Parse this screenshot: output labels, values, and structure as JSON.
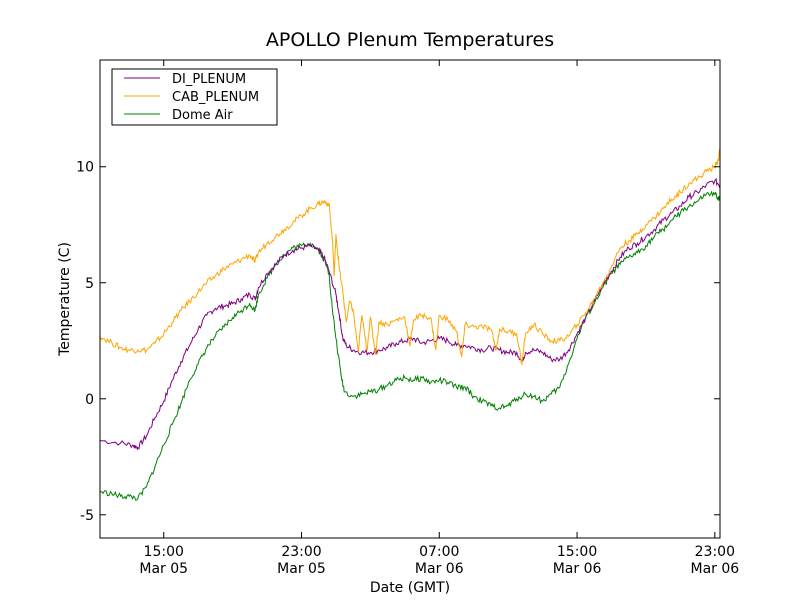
{
  "chart_data": {
    "type": "line",
    "title": "APOLLO Plenum Temperatures",
    "xlabel": "Date (GMT)",
    "ylabel": "Temperature (C)",
    "x_unit": "hours since Mar 05 00:00 GMT",
    "xlim": [
      11.3,
      47.3
    ],
    "ylim": [
      -6,
      14.6
    ],
    "grid": false,
    "legend_position": "top-left",
    "x_ticks": [
      {
        "value": 15,
        "time": "15:00",
        "date": "Mar 05"
      },
      {
        "value": 23,
        "time": "23:00",
        "date": "Mar 05"
      },
      {
        "value": 31,
        "time": "07:00",
        "date": "Mar 06"
      },
      {
        "value": 39,
        "time": "15:00",
        "date": "Mar 06"
      },
      {
        "value": 47,
        "time": "23:00",
        "date": "Mar 06"
      }
    ],
    "y_ticks": [
      {
        "value": -5,
        "label": "-5"
      },
      {
        "value": 0,
        "label": "0"
      },
      {
        "value": 5,
        "label": "5"
      },
      {
        "value": 10,
        "label": "10"
      }
    ],
    "series": [
      {
        "name": "DI_PLENUM",
        "color": "#800080",
        "points": [
          [
            11.3,
            -1.8
          ],
          [
            12.5,
            -1.9
          ],
          [
            13.2,
            -2.0
          ],
          [
            13.5,
            -2.1
          ],
          [
            14.0,
            -1.6
          ],
          [
            14.5,
            -0.8
          ],
          [
            15.0,
            -0.1
          ],
          [
            15.5,
            0.8
          ],
          [
            16.0,
            1.6
          ],
          [
            16.5,
            2.3
          ],
          [
            17.0,
            3.0
          ],
          [
            17.5,
            3.6
          ],
          [
            18.0,
            3.9
          ],
          [
            18.5,
            4.0
          ],
          [
            19.0,
            4.1
          ],
          [
            19.5,
            4.3
          ],
          [
            20.0,
            4.5
          ],
          [
            20.3,
            4.3
          ],
          [
            20.5,
            4.8
          ],
          [
            21.0,
            5.4
          ],
          [
            21.5,
            5.8
          ],
          [
            22.0,
            6.2
          ],
          [
            22.5,
            6.4
          ],
          [
            23.0,
            6.5
          ],
          [
            23.5,
            6.6
          ],
          [
            24.0,
            6.4
          ],
          [
            24.3,
            6.1
          ],
          [
            24.6,
            5.5
          ],
          [
            25.0,
            4.5
          ],
          [
            25.2,
            3.6
          ],
          [
            25.4,
            2.6
          ],
          [
            25.6,
            2.3
          ],
          [
            26.0,
            2.1
          ],
          [
            26.5,
            2.0
          ],
          [
            27.0,
            2.0
          ],
          [
            27.5,
            2.1
          ],
          [
            28.0,
            2.2
          ],
          [
            28.5,
            2.4
          ],
          [
            29.0,
            2.5
          ],
          [
            29.5,
            2.6
          ],
          [
            30.0,
            2.4
          ],
          [
            30.5,
            2.5
          ],
          [
            31.0,
            2.6
          ],
          [
            31.5,
            2.5
          ],
          [
            32.0,
            2.3
          ],
          [
            32.5,
            2.3
          ],
          [
            33.0,
            2.2
          ],
          [
            33.5,
            2.1
          ],
          [
            34.0,
            2.2
          ],
          [
            34.5,
            2.1
          ],
          [
            35.0,
            2.0
          ],
          [
            35.5,
            2.0
          ],
          [
            35.8,
            1.6
          ],
          [
            36.0,
            2.0
          ],
          [
            36.5,
            2.1
          ],
          [
            37.0,
            2.0
          ],
          [
            37.5,
            1.7
          ],
          [
            38.0,
            1.7
          ],
          [
            38.5,
            2.1
          ],
          [
            39.0,
            2.8
          ],
          [
            39.5,
            3.5
          ],
          [
            40.0,
            4.2
          ],
          [
            40.5,
            4.9
          ],
          [
            41.0,
            5.5
          ],
          [
            41.5,
            6.1
          ],
          [
            42.0,
            6.5
          ],
          [
            42.5,
            6.7
          ],
          [
            43.0,
            7.0
          ],
          [
            43.5,
            7.3
          ],
          [
            44.0,
            7.7
          ],
          [
            44.5,
            8.0
          ],
          [
            45.0,
            8.3
          ],
          [
            45.5,
            8.7
          ],
          [
            46.0,
            8.9
          ],
          [
            46.5,
            9.2
          ],
          [
            47.0,
            9.4
          ],
          [
            47.3,
            9.2
          ]
        ]
      },
      {
        "name": "CAB_PLENUM",
        "color": "#FFA500",
        "points": [
          [
            11.3,
            2.7
          ],
          [
            12.0,
            2.4
          ],
          [
            12.5,
            2.2
          ],
          [
            13.0,
            2.1
          ],
          [
            13.5,
            2.1
          ],
          [
            14.0,
            2.1
          ],
          [
            14.5,
            2.4
          ],
          [
            15.0,
            2.8
          ],
          [
            15.5,
            3.3
          ],
          [
            16.0,
            3.8
          ],
          [
            16.5,
            4.2
          ],
          [
            17.0,
            4.6
          ],
          [
            17.5,
            5.0
          ],
          [
            18.0,
            5.3
          ],
          [
            18.5,
            5.6
          ],
          [
            19.0,
            5.8
          ],
          [
            19.5,
            6.0
          ],
          [
            20.0,
            6.2
          ],
          [
            20.3,
            5.9
          ],
          [
            20.5,
            6.3
          ],
          [
            21.0,
            6.7
          ],
          [
            21.5,
            7.0
          ],
          [
            22.0,
            7.3
          ],
          [
            22.5,
            7.6
          ],
          [
            23.0,
            7.9
          ],
          [
            23.5,
            8.2
          ],
          [
            24.0,
            8.4
          ],
          [
            24.3,
            8.5
          ],
          [
            24.6,
            8.4
          ],
          [
            24.8,
            6.8
          ],
          [
            24.9,
            5.3
          ],
          [
            25.0,
            7.1
          ],
          [
            25.2,
            5.6
          ],
          [
            25.4,
            4.6
          ],
          [
            25.6,
            3.3
          ],
          [
            25.8,
            4.2
          ],
          [
            26.0,
            3.8
          ],
          [
            26.3,
            2.0
          ],
          [
            26.5,
            3.6
          ],
          [
            26.8,
            2.1
          ],
          [
            27.0,
            3.5
          ],
          [
            27.3,
            1.9
          ],
          [
            27.5,
            3.3
          ],
          [
            28.0,
            3.2
          ],
          [
            28.5,
            3.4
          ],
          [
            29.0,
            3.5
          ],
          [
            29.3,
            2.3
          ],
          [
            29.5,
            3.4
          ],
          [
            30.0,
            3.6
          ],
          [
            30.5,
            3.5
          ],
          [
            30.8,
            2.1
          ],
          [
            31.0,
            3.6
          ],
          [
            31.5,
            3.4
          ],
          [
            32.0,
            2.9
          ],
          [
            32.3,
            1.8
          ],
          [
            32.5,
            3.2
          ],
          [
            33.0,
            3.1
          ],
          [
            33.5,
            3.1
          ],
          [
            34.0,
            3.0
          ],
          [
            34.3,
            2.1
          ],
          [
            34.5,
            3.0
          ],
          [
            35.0,
            2.9
          ],
          [
            35.5,
            2.8
          ],
          [
            35.8,
            1.5
          ],
          [
            36.0,
            2.8
          ],
          [
            36.5,
            3.2
          ],
          [
            37.0,
            2.8
          ],
          [
            37.5,
            2.5
          ],
          [
            38.0,
            2.5
          ],
          [
            38.5,
            2.7
          ],
          [
            39.0,
            3.2
          ],
          [
            39.5,
            3.7
          ],
          [
            40.0,
            4.3
          ],
          [
            40.5,
            5.0
          ],
          [
            41.0,
            5.7
          ],
          [
            41.5,
            6.5
          ],
          [
            42.0,
            6.8
          ],
          [
            42.5,
            7.1
          ],
          [
            43.0,
            7.5
          ],
          [
            43.5,
            7.8
          ],
          [
            44.0,
            8.2
          ],
          [
            44.5,
            8.6
          ],
          [
            45.0,
            8.9
          ],
          [
            45.5,
            9.3
          ],
          [
            46.0,
            9.5
          ],
          [
            46.5,
            9.8
          ],
          [
            47.0,
            10.0
          ],
          [
            47.2,
            10.3
          ],
          [
            47.3,
            10.8
          ]
        ]
      },
      {
        "name": "Dome Air",
        "color": "#008000",
        "points": [
          [
            11.3,
            -4.0
          ],
          [
            12.0,
            -4.1
          ],
          [
            12.5,
            -4.2
          ],
          [
            13.0,
            -4.2
          ],
          [
            13.5,
            -4.3
          ],
          [
            14.0,
            -3.8
          ],
          [
            14.5,
            -2.9
          ],
          [
            15.0,
            -2.0
          ],
          [
            15.5,
            -1.1
          ],
          [
            16.0,
            -0.2
          ],
          [
            16.5,
            0.8
          ],
          [
            17.0,
            1.5
          ],
          [
            17.5,
            2.2
          ],
          [
            18.0,
            2.7
          ],
          [
            18.5,
            3.1
          ],
          [
            19.0,
            3.5
          ],
          [
            19.5,
            3.8
          ],
          [
            20.0,
            4.1
          ],
          [
            20.3,
            3.8
          ],
          [
            20.5,
            4.5
          ],
          [
            21.0,
            5.2
          ],
          [
            21.5,
            5.8
          ],
          [
            22.0,
            6.2
          ],
          [
            22.5,
            6.5
          ],
          [
            23.0,
            6.6
          ],
          [
            23.5,
            6.7
          ],
          [
            24.0,
            6.4
          ],
          [
            24.3,
            6.0
          ],
          [
            24.6,
            5.4
          ],
          [
            24.8,
            3.8
          ],
          [
            25.0,
            2.6
          ],
          [
            25.3,
            1.0
          ],
          [
            25.5,
            0.3
          ],
          [
            26.0,
            0.1
          ],
          [
            26.5,
            0.2
          ],
          [
            27.0,
            0.3
          ],
          [
            27.5,
            0.4
          ],
          [
            28.0,
            0.6
          ],
          [
            28.5,
            0.8
          ],
          [
            29.0,
            0.9
          ],
          [
            29.5,
            0.8
          ],
          [
            30.0,
            0.9
          ],
          [
            30.5,
            0.7
          ],
          [
            31.0,
            0.8
          ],
          [
            31.5,
            0.7
          ],
          [
            32.0,
            0.5
          ],
          [
            32.5,
            0.5
          ],
          [
            33.0,
            0.1
          ],
          [
            33.5,
            -0.1
          ],
          [
            34.0,
            -0.3
          ],
          [
            34.5,
            -0.4
          ],
          [
            35.0,
            -0.3
          ],
          [
            35.5,
            0.0
          ],
          [
            36.0,
            0.2
          ],
          [
            36.5,
            0.1
          ],
          [
            37.0,
            -0.1
          ],
          [
            37.5,
            0.2
          ],
          [
            38.0,
            0.5
          ],
          [
            38.5,
            1.5
          ],
          [
            39.0,
            2.6
          ],
          [
            39.5,
            3.5
          ],
          [
            40.0,
            4.1
          ],
          [
            40.5,
            4.8
          ],
          [
            41.0,
            5.4
          ],
          [
            41.5,
            5.8
          ],
          [
            42.0,
            6.1
          ],
          [
            42.5,
            6.3
          ],
          [
            43.0,
            6.6
          ],
          [
            43.5,
            7.0
          ],
          [
            44.0,
            7.3
          ],
          [
            44.5,
            7.7
          ],
          [
            45.0,
            8.0
          ],
          [
            45.5,
            8.3
          ],
          [
            46.0,
            8.5
          ],
          [
            46.5,
            8.8
          ],
          [
            47.0,
            8.8
          ],
          [
            47.3,
            8.6
          ]
        ]
      }
    ]
  }
}
